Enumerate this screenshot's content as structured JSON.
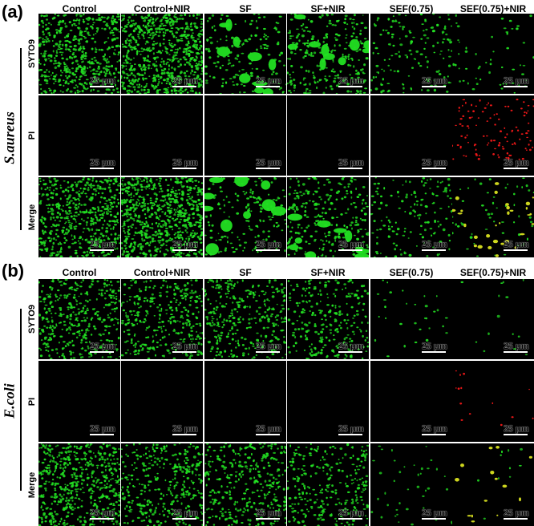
{
  "figure": {
    "panels": [
      {
        "label": "(a)",
        "species": "S.aureus",
        "columns": [
          "Control",
          "Control+NIR",
          "SF",
          "SF+NIR",
          "SEF(0.75)",
          "SEF(0.75)+NIR"
        ],
        "rows": [
          "SYTO9",
          "PI",
          "Merge"
        ],
        "scale_bar": "25 μm"
      },
      {
        "label": "(b)",
        "species": "E.coli",
        "columns": [
          "Control",
          "Control+NIR",
          "SF",
          "SF+NIR",
          "SEF(0.75)",
          "SEF(0.75)+NIR"
        ],
        "rows": [
          "SYTO9",
          "PI",
          "Merge"
        ],
        "scale_bar": "25 μm"
      }
    ],
    "colors": {
      "live_stain": "#22e022",
      "dead_stain": "#ff1a1a",
      "merge_overlap": "#d8e020",
      "background": "#000000"
    }
  }
}
